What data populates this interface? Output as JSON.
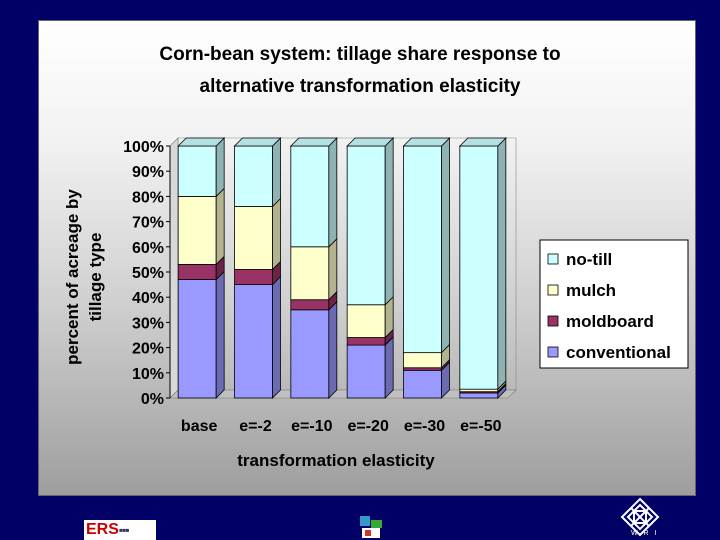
{
  "title_line1": "Corn-bean system: tillage share response to",
  "title_line2": "alternative transformation elasticity",
  "logos": {
    "ers_text": "ERS",
    "wri_text": "W R I"
  },
  "chart_data": {
    "type": "bar",
    "stacked": true,
    "stacked_percent": true,
    "three_d": true,
    "categories": [
      "base",
      "e=-2",
      "e=-10",
      "e=-20",
      "e=-30",
      "e=-50"
    ],
    "series": [
      {
        "name": "conventional",
        "color": "#9999ff",
        "values": [
          47,
          45,
          35,
          21,
          11,
          2
        ]
      },
      {
        "name": "moldboard",
        "color": "#993366",
        "values": [
          6,
          6,
          4,
          3,
          1,
          0.5
        ]
      },
      {
        "name": "mulch",
        "color": "#ffffcc",
        "values": [
          27,
          25,
          21,
          13,
          6,
          1
        ]
      },
      {
        "name": "no-till",
        "color": "#ccffff",
        "values": [
          20,
          24,
          40,
          63,
          82,
          96.5
        ]
      }
    ],
    "ylim": [
      0,
      100
    ],
    "yticks": [
      "0%",
      "10%",
      "20%",
      "30%",
      "40%",
      "50%",
      "60%",
      "70%",
      "80%",
      "90%",
      "100%"
    ],
    "xlabel": "transformation elasticity",
    "ylabel_line1": "percent of acreage by",
    "ylabel_line2": "tillage type",
    "legend_position": "right",
    "legend_order": [
      "no-till",
      "mulch",
      "moldboard",
      "conventional"
    ],
    "grid": false
  }
}
